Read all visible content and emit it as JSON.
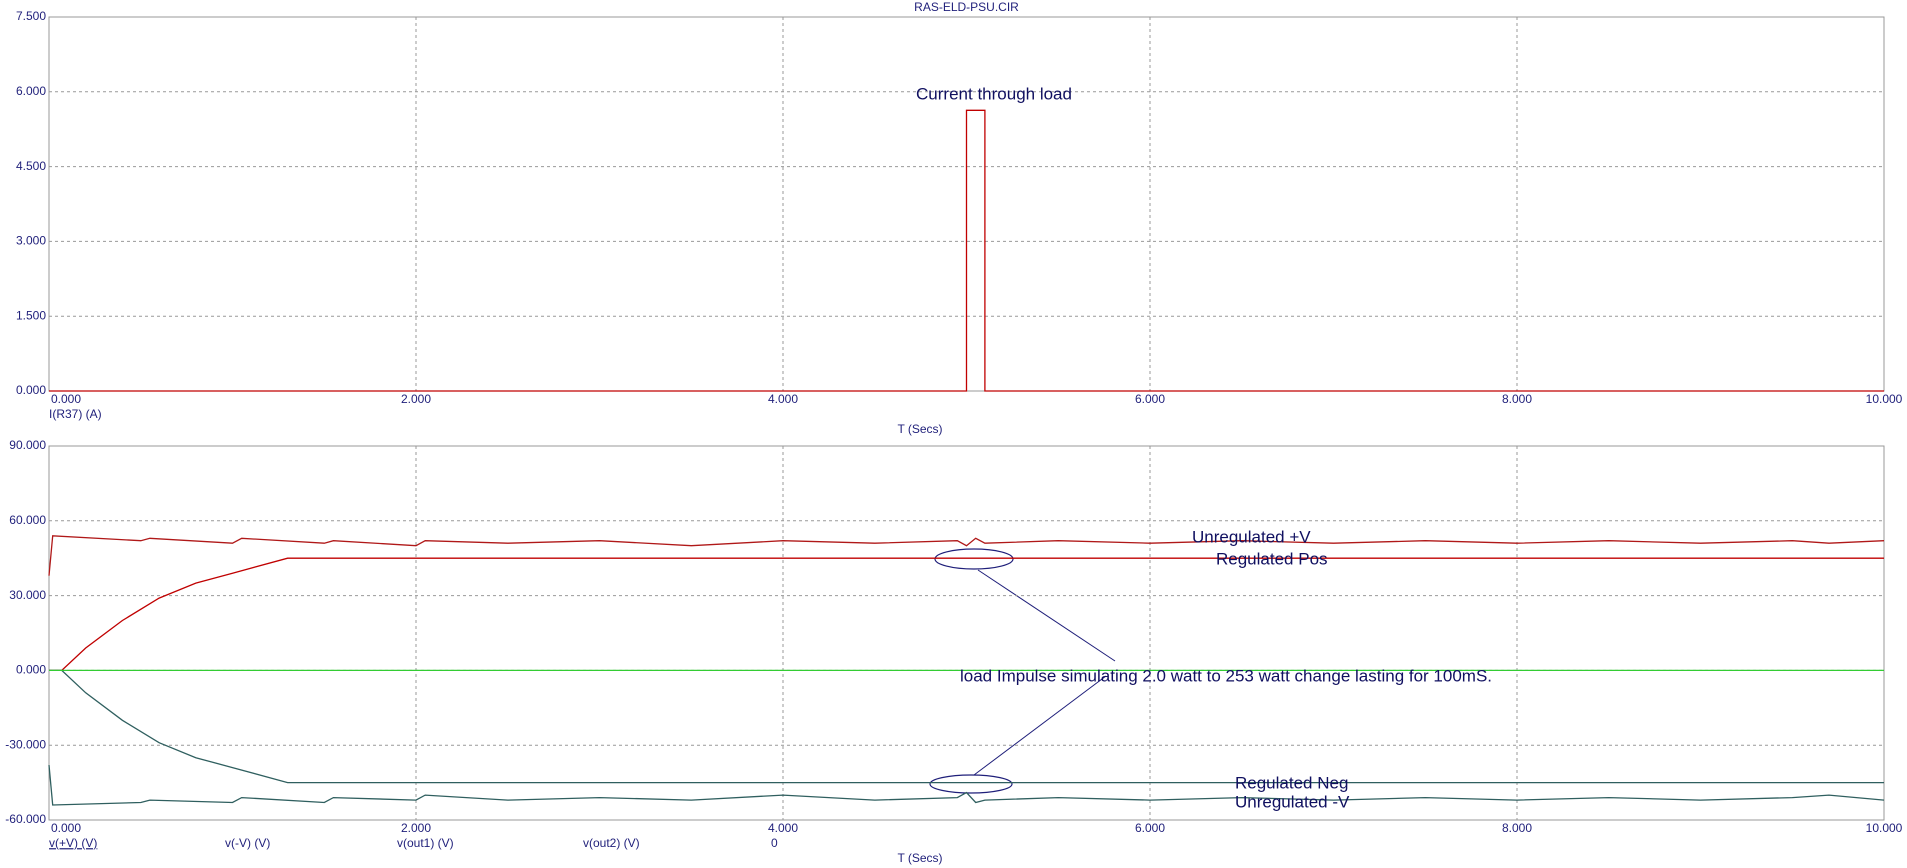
{
  "chart_data": [
    {
      "type": "line",
      "title": "RAS-ELD-PSU.CIR",
      "xlabel": "T (Secs)",
      "xlim": [
        0,
        10
      ],
      "ylim": [
        0,
        7.5
      ],
      "grid": true,
      "xticks": [
        {
          "value": 0,
          "label": "0.000"
        },
        {
          "value": 2,
          "label": "2.000"
        },
        {
          "value": 4,
          "label": "4.000"
        },
        {
          "value": 6,
          "label": "6.000"
        },
        {
          "value": 8,
          "label": "8.000"
        },
        {
          "value": 10,
          "label": "10.000"
        }
      ],
      "yticks": [
        {
          "value": 0,
          "label": "0.000"
        },
        {
          "value": 1.5,
          "label": "1.500"
        },
        {
          "value": 3,
          "label": "3.000"
        },
        {
          "value": 4.5,
          "label": "4.500"
        },
        {
          "value": 6,
          "label": "6.000"
        },
        {
          "value": 7.5,
          "label": "7.500"
        }
      ],
      "annotations": [
        "Current through load"
      ],
      "series": [
        {
          "name": "I(R37) (A)",
          "color": "#c00000",
          "x": [
            0,
            5.0,
            5.0,
            5.1,
            5.1,
            10
          ],
          "values": [
            0,
            0,
            5.63,
            5.63,
            0,
            0
          ]
        }
      ]
    },
    {
      "type": "line",
      "xlabel": "T (Secs)",
      "xlim": [
        0,
        10
      ],
      "ylim": [
        -60,
        90
      ],
      "grid": true,
      "xticks": [
        {
          "value": 0,
          "label": "0.000"
        },
        {
          "value": 2,
          "label": "2.000"
        },
        {
          "value": 4,
          "label": "4.000"
        },
        {
          "value": 6,
          "label": "6.000"
        },
        {
          "value": 8,
          "label": "8.000"
        },
        {
          "value": 10,
          "label": "10.000"
        }
      ],
      "yticks": [
        {
          "value": -60,
          "label": "-60.000"
        },
        {
          "value": -30,
          "label": "-30.000"
        },
        {
          "value": 0,
          "label": "0.000"
        },
        {
          "value": 30,
          "label": "30.000"
        },
        {
          "value": 60,
          "label": "60.000"
        },
        {
          "value": 90,
          "label": "90.000"
        }
      ],
      "annotations": [
        "Unregulated +V",
        "Regulated Pos",
        "load Impulse simulating 2.0 watt to 253 watt change lasting for 100mS.",
        "Regulated Neg",
        "Unregulated -V"
      ],
      "series": [
        {
          "name": "v(+V) (V)",
          "color": "#b01818",
          "x": [
            0,
            0.02,
            0.5,
            0.55,
            1.0,
            1.05,
            1.5,
            1.55,
            2.0,
            2.05,
            2.5,
            3.0,
            3.5,
            4.0,
            4.5,
            4.95,
            5.0,
            5.05,
            5.1,
            5.5,
            6.0,
            6.5,
            7.0,
            7.5,
            8.0,
            8.5,
            9.0,
            9.5,
            9.7,
            10
          ],
          "values": [
            38,
            54,
            52,
            53,
            51,
            53,
            51,
            52,
            50,
            52,
            51,
            52,
            50,
            52,
            51,
            52,
            50,
            53,
            51,
            52,
            51,
            52,
            51,
            52,
            51,
            52,
            51,
            52,
            51,
            52
          ]
        },
        {
          "name": "v(-V) (V)",
          "color": "#2f5f5f",
          "x": [
            0,
            0.02,
            0.5,
            0.55,
            1.0,
            1.05,
            1.5,
            1.55,
            2.0,
            2.05,
            2.5,
            3.0,
            3.5,
            4.0,
            4.5,
            4.95,
            5.0,
            5.05,
            5.1,
            5.5,
            6.0,
            6.5,
            7.0,
            7.5,
            8.0,
            8.5,
            9.0,
            9.5,
            9.7,
            10
          ],
          "values": [
            -38,
            -54,
            -53,
            -52,
            -53,
            -51,
            -53,
            -51,
            -52,
            -50,
            -52,
            -51,
            -52,
            -50,
            -52,
            -51,
            -49,
            -53,
            -52,
            -51,
            -52,
            -51,
            -52,
            -51,
            -52,
            -51,
            -52,
            -51,
            -50,
            -52
          ]
        },
        {
          "name": "v(out1) (V)",
          "color": "#c00000",
          "x": [
            0,
            0.07,
            0.2,
            0.4,
            0.6,
            0.8,
            1.0,
            1.3,
            10
          ],
          "values": [
            0,
            0,
            9,
            20,
            29,
            35,
            39,
            45,
            45
          ]
        },
        {
          "name": "v(out2) (V)",
          "color": "#2f5f5f",
          "x": [
            0,
            0.07,
            0.2,
            0.4,
            0.6,
            0.8,
            1.0,
            1.3,
            10
          ],
          "values": [
            0,
            0,
            -9,
            -20,
            -29,
            -35,
            -39,
            -45,
            -45
          ]
        },
        {
          "name": "0",
          "color": "#33cc33",
          "x": [
            0,
            10
          ],
          "values": [
            0,
            0
          ]
        }
      ]
    }
  ]
}
